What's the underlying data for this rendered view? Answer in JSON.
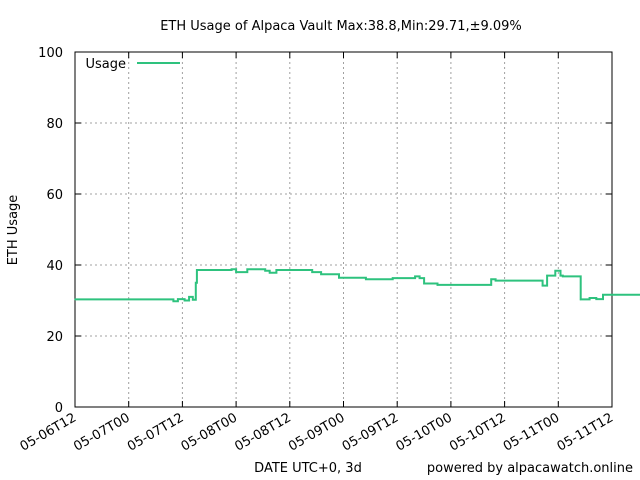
{
  "chart_data": {
    "type": "line",
    "title": "ETH Usage of Alpaca Vault Max:38.8,Min:29.71,±9.09%",
    "xlabel": "DATE UTC+0, 3d",
    "ylabel": "ETH Usage",
    "credit": "powered by alpacawatch.online",
    "ylim": [
      0,
      100
    ],
    "yticks": [
      0,
      20,
      40,
      60,
      80,
      100
    ],
    "xlim": [
      "2021-05-06T12:00",
      "2021-05-11T12:00"
    ],
    "xticks": [
      {
        "t": "2021-05-06T12:00",
        "label": "05-06T12"
      },
      {
        "t": "2021-05-07T00:00",
        "label": "05-07T00"
      },
      {
        "t": "2021-05-07T12:00",
        "label": "05-07T12"
      },
      {
        "t": "2021-05-08T00:00",
        "label": "05-08T00"
      },
      {
        "t": "2021-05-08T12:00",
        "label": "05-08T12"
      },
      {
        "t": "2021-05-09T00:00",
        "label": "05-09T00"
      },
      {
        "t": "2021-05-09T12:00",
        "label": "05-09T12"
      },
      {
        "t": "2021-05-10T00:00",
        "label": "05-10T00"
      },
      {
        "t": "2021-05-10T12:00",
        "label": "05-10T12"
      },
      {
        "t": "2021-05-11T00:00",
        "label": "05-11T00"
      },
      {
        "t": "2021-05-11T12:00",
        "label": "05-11T12"
      }
    ],
    "grid": true,
    "legend_position": "top-left",
    "series": [
      {
        "name": "Usage",
        "color": "#2ec27e",
        "step": true,
        "points": [
          [
            "2021-05-06T12:00",
            30.3
          ],
          [
            "2021-05-07T09:50",
            30.3
          ],
          [
            "2021-05-07T10:00",
            29.8
          ],
          [
            "2021-05-07T11:00",
            30.4
          ],
          [
            "2021-05-07T12:30",
            30.0
          ],
          [
            "2021-05-07T13:30",
            31.0
          ],
          [
            "2021-05-07T14:20",
            30.2
          ],
          [
            "2021-05-07T15:00",
            35.0
          ],
          [
            "2021-05-07T15:15",
            38.6
          ],
          [
            "2021-05-07T23:00",
            38.8
          ],
          [
            "2021-05-08T00:00",
            38.0
          ],
          [
            "2021-05-08T02:30",
            38.8
          ],
          [
            "2021-05-08T06:30",
            38.4
          ],
          [
            "2021-05-08T07:30",
            37.8
          ],
          [
            "2021-05-08T09:00",
            38.6
          ],
          [
            "2021-05-08T17:00",
            38.0
          ],
          [
            "2021-05-08T19:00",
            37.4
          ],
          [
            "2021-05-08T23:00",
            36.4
          ],
          [
            "2021-05-09T05:00",
            36.0
          ],
          [
            "2021-05-09T11:00",
            36.3
          ],
          [
            "2021-05-09T16:00",
            36.8
          ],
          [
            "2021-05-09T17:00",
            36.3
          ],
          [
            "2021-05-09T18:00",
            34.8
          ],
          [
            "2021-05-09T21:00",
            34.4
          ],
          [
            "2021-05-10T09:00",
            36.0
          ],
          [
            "2021-05-10T10:00",
            35.6
          ],
          [
            "2021-05-10T20:30",
            34.2
          ],
          [
            "2021-05-10T21:30",
            37.0
          ],
          [
            "2021-05-10T23:20",
            38.4
          ],
          [
            "2021-05-11T00:30",
            37.0
          ],
          [
            "2021-05-11T01:00",
            36.8
          ],
          [
            "2021-05-11T05:00",
            30.3
          ],
          [
            "2021-05-11T07:00",
            30.7
          ],
          [
            "2021-05-11T08:30",
            30.4
          ],
          [
            "2021-05-11T10:00",
            31.6
          ],
          [
            "2021-05-11T12:00",
            31.6
          ],
          [
            "2021-05-11T23:50",
            31.6
          ]
        ]
      }
    ]
  }
}
